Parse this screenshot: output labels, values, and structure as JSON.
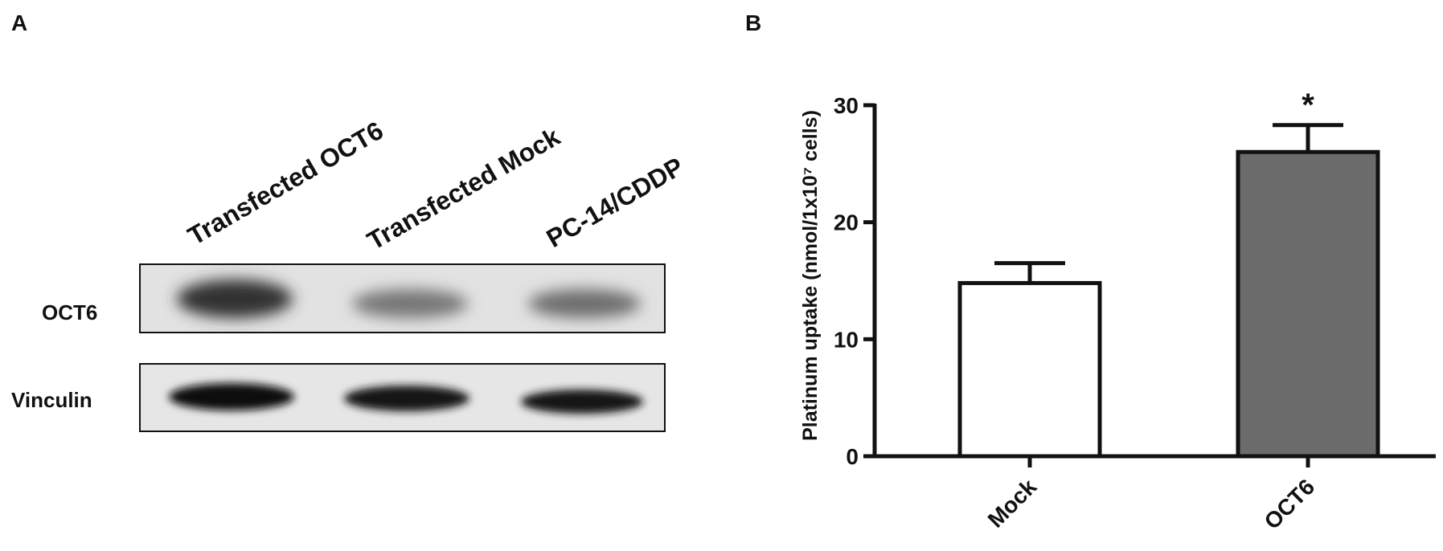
{
  "panel_a": {
    "label": "A",
    "lanes": [
      "Transfected OCT6",
      "Transfected Mock",
      "PC-14/CDDP"
    ],
    "rows": [
      "OCT6",
      "Vinculin"
    ]
  },
  "chart_data": {
    "type": "bar",
    "panel_label": "B",
    "ylabel": "Platinum uptake (nmol/1x10⁷ cells)",
    "categories": [
      "Mock",
      "OCT6"
    ],
    "values": [
      14.8,
      26.0
    ],
    "errors": [
      1.7,
      2.3
    ],
    "colors": [
      "#ffffff",
      "#6b6b6b"
    ],
    "ylim": [
      0,
      30
    ],
    "yticks": [
      0,
      10,
      20,
      30
    ],
    "annotations": [
      {
        "text": "*",
        "x": "OCT6"
      }
    ]
  }
}
